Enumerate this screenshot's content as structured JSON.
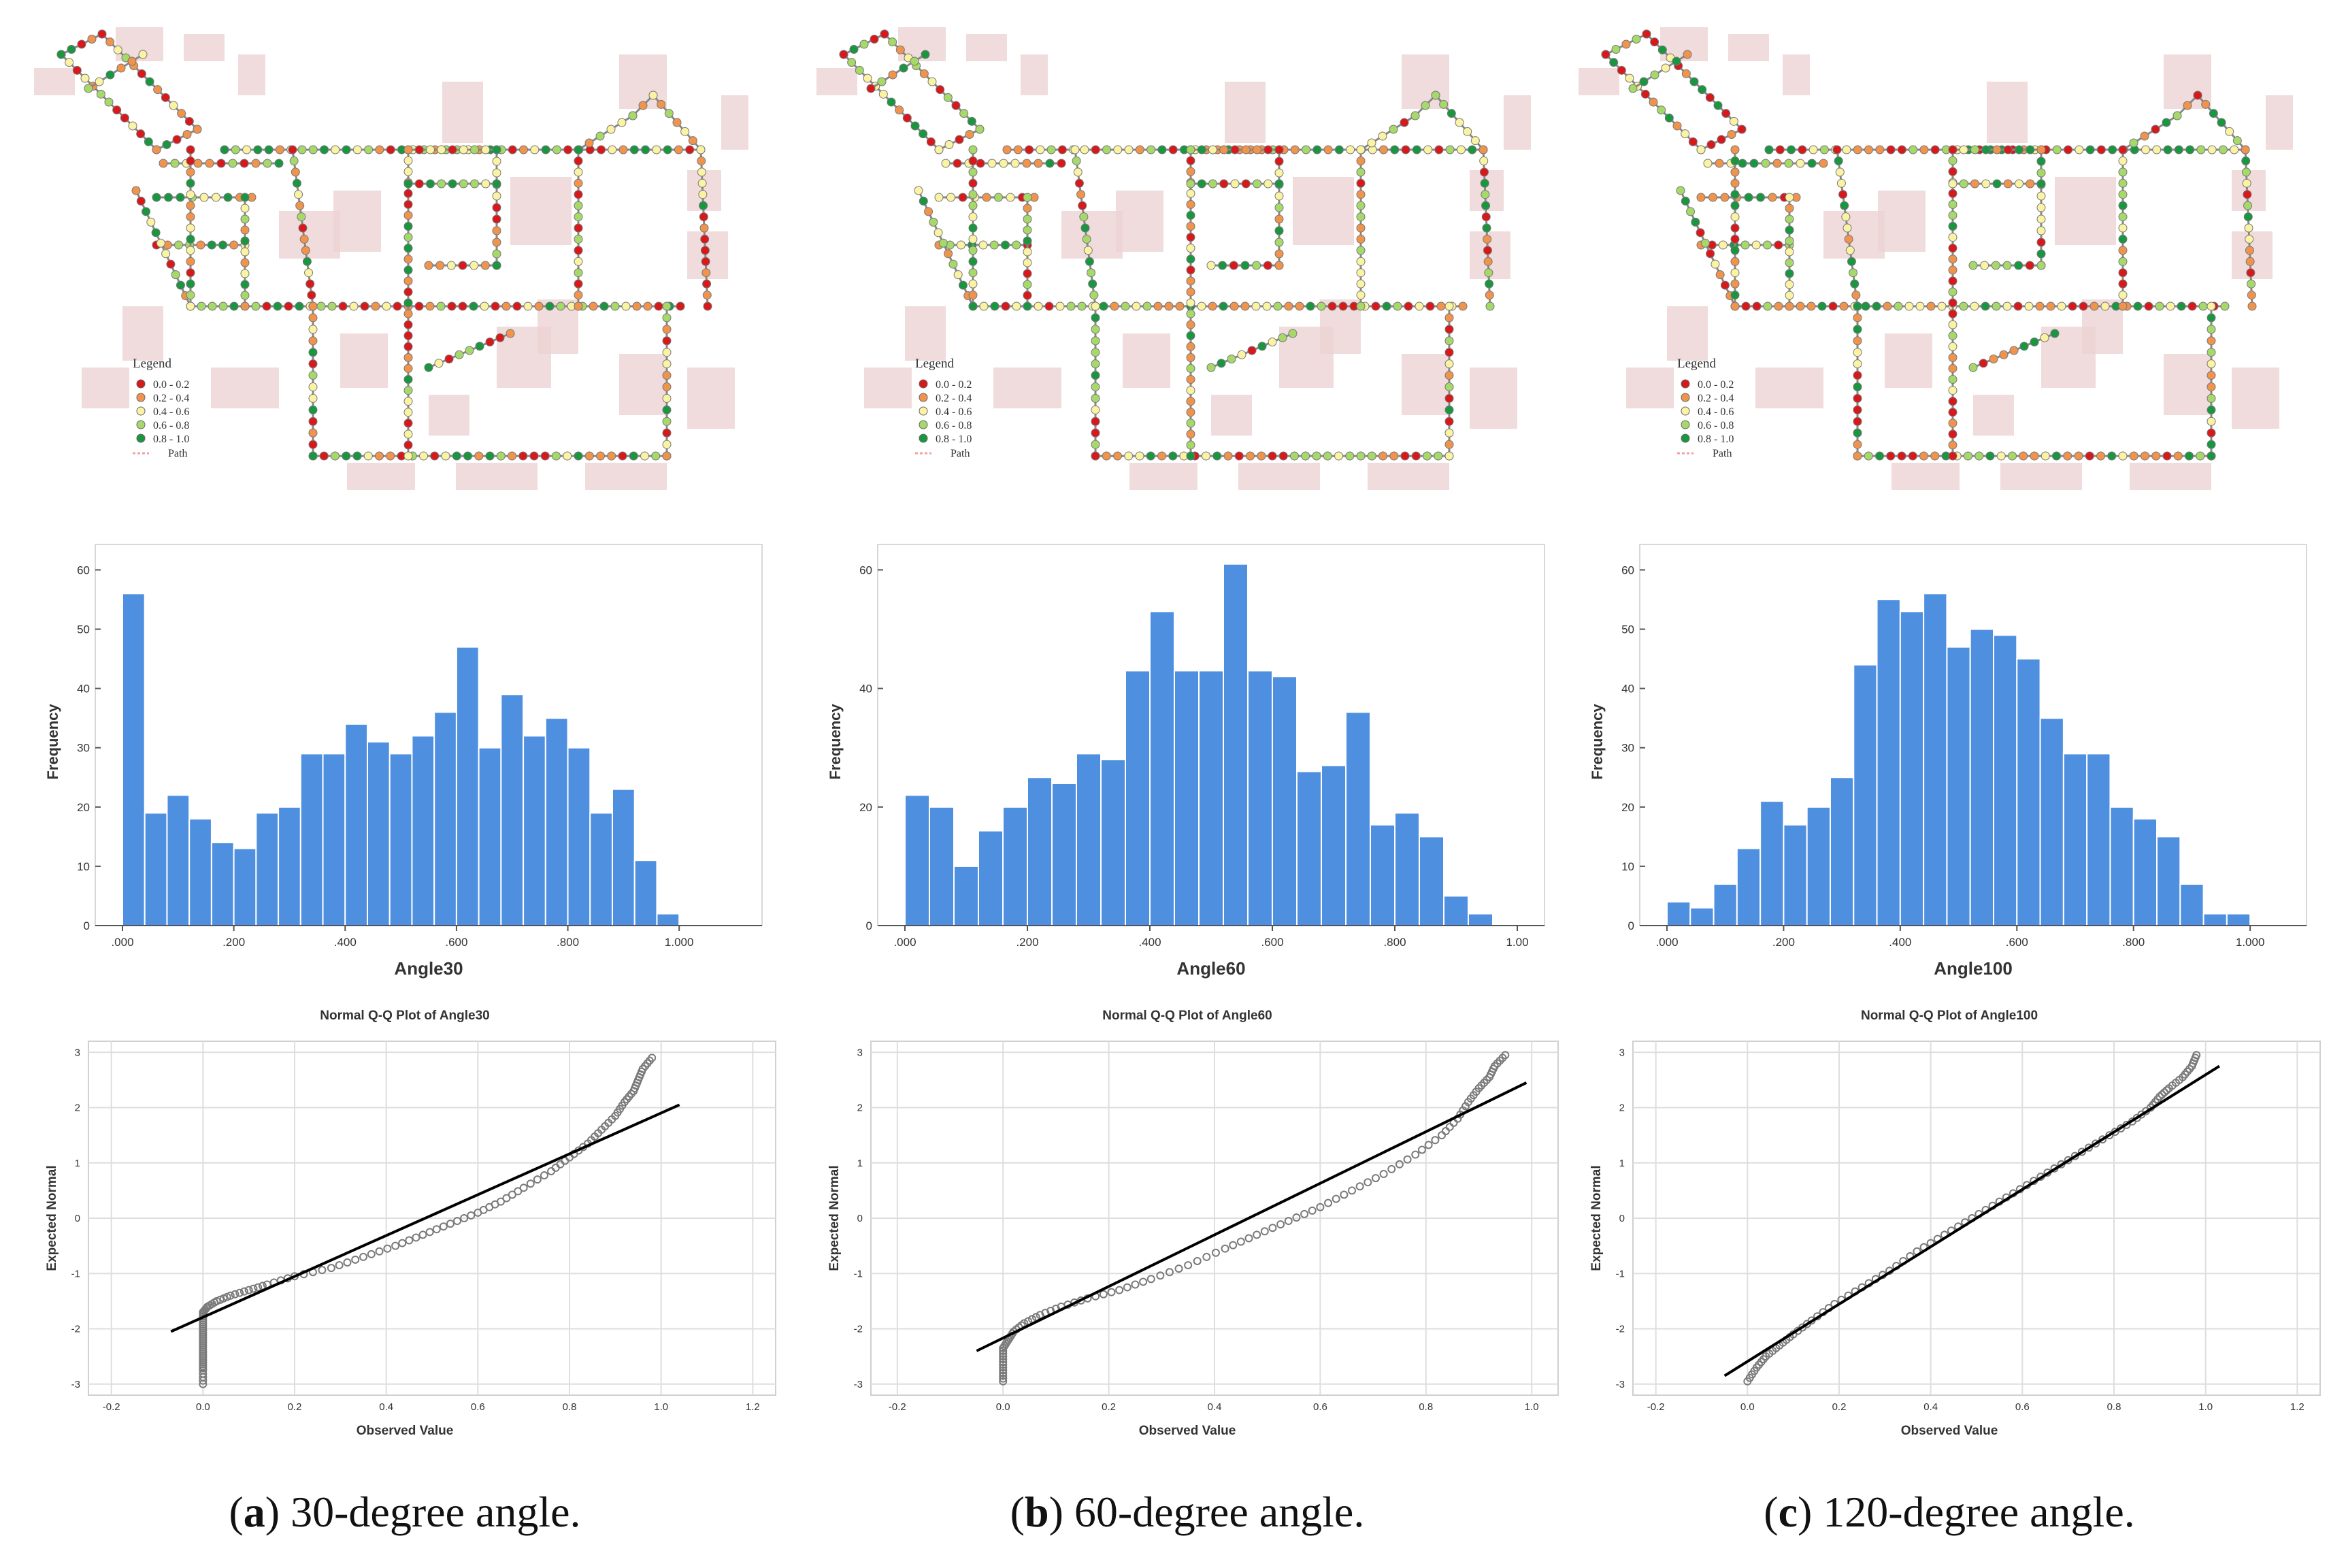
{
  "legend": {
    "title": "Legend",
    "classes": [
      {
        "label": "0.0 - 0.2",
        "color": "#d7191c"
      },
      {
        "label": "0.2 - 0.4",
        "color": "#f0944d"
      },
      {
        "label": "0.4 - 0.6",
        "color": "#fbf3a4"
      },
      {
        "label": "0.6 - 0.8",
        "color": "#a6d96a"
      },
      {
        "label": "0.8 - 1.0",
        "color": "#1a9641"
      }
    ],
    "path_label": "Path",
    "path_color": "#f4a0a0"
  },
  "colors": {
    "bar": "#4f8fe0",
    "qq_points": "#7a7a7a",
    "qq_line": "#000000",
    "building": "#ecd3d3",
    "grid": "#dedede"
  },
  "panels": [
    {
      "id": "a",
      "caption_letter": "a",
      "caption_rest": ") 30-degree angle.",
      "histogram": {
        "type": "bar",
        "xlabel": "Angle30",
        "ylabel": "Frequency",
        "xlim": [
          0,
          1.1
        ],
        "ylim": [
          0,
          62
        ],
        "yticks": [
          0,
          10,
          20,
          30,
          40,
          50,
          60
        ],
        "xticks": [
          ".000",
          ".200",
          ".400",
          ".600",
          ".800",
          "1.000"
        ],
        "xtick_values": [
          0,
          0.2,
          0.4,
          0.6,
          0.8,
          1.0
        ],
        "bin_start": 0.0,
        "bin_width": 0.04,
        "values": [
          56,
          19,
          22,
          18,
          14,
          13,
          19,
          20,
          29,
          29,
          34,
          31,
          29,
          32,
          36,
          47,
          30,
          39,
          32,
          35,
          30,
          19,
          23,
          11,
          2
        ]
      },
      "qq": {
        "type": "scatter",
        "title": "Normal Q-Q Plot of Angle30",
        "xlabel": "Observed Value",
        "ylabel": "Expected Normal",
        "xlim": [
          -0.25,
          1.25
        ],
        "ylim": [
          -3.2,
          3.2
        ],
        "xticks": [
          "-0.2",
          "0.0",
          "0.2",
          "0.4",
          "0.6",
          "0.8",
          "1.0",
          "1.2"
        ],
        "xtick_values": [
          -0.2,
          0,
          0.2,
          0.4,
          0.6,
          0.8,
          1.0,
          1.2
        ],
        "yticks": [
          "-3",
          "-2",
          "-1",
          "0",
          "1",
          "2",
          "3"
        ],
        "ytick_values": [
          -3,
          -2,
          -1,
          0,
          1,
          2,
          3
        ],
        "line": [
          [
            -0.07,
            -2.05
          ],
          [
            1.04,
            2.05
          ]
        ],
        "points": [
          [
            0.0,
            -3.0
          ],
          [
            0.0,
            -2.75
          ],
          [
            0.0,
            -2.6
          ],
          [
            0.0,
            -2.45
          ],
          [
            0.0,
            -2.3
          ],
          [
            0.0,
            -2.15
          ],
          [
            0.0,
            -2.0
          ],
          [
            0.0,
            -1.85
          ],
          [
            0.0,
            -1.7
          ],
          [
            0.01,
            -1.6
          ],
          [
            0.03,
            -1.5
          ],
          [
            0.06,
            -1.4
          ],
          [
            0.1,
            -1.3
          ],
          [
            0.14,
            -1.2
          ],
          [
            0.2,
            -1.05
          ],
          [
            0.28,
            -0.9
          ],
          [
            0.35,
            -0.7
          ],
          [
            0.42,
            -0.5
          ],
          [
            0.48,
            -0.3
          ],
          [
            0.54,
            -0.1
          ],
          [
            0.6,
            0.1
          ],
          [
            0.65,
            0.3
          ],
          [
            0.7,
            0.55
          ],
          [
            0.76,
            0.85
          ],
          [
            0.8,
            1.1
          ],
          [
            0.84,
            1.35
          ],
          [
            0.87,
            1.6
          ],
          [
            0.9,
            1.85
          ],
          [
            0.92,
            2.1
          ],
          [
            0.94,
            2.3
          ],
          [
            0.95,
            2.5
          ],
          [
            0.96,
            2.7
          ],
          [
            0.98,
            2.9
          ]
        ]
      }
    },
    {
      "id": "b",
      "caption_letter": "b",
      "caption_rest": ") 60-degree angle.",
      "histogram": {
        "type": "bar",
        "xlabel": "Angle60",
        "ylabel": "Frequency",
        "xlim": [
          0,
          1.0
        ],
        "ylim": [
          0,
          62
        ],
        "yticks": [
          0,
          20,
          40,
          60
        ],
        "xticks": [
          ".000",
          ".200",
          ".400",
          ".600",
          ".800",
          "1.00"
        ],
        "xtick_values": [
          0,
          0.2,
          0.4,
          0.6,
          0.8,
          1.0
        ],
        "bin_start": 0.0,
        "bin_width": 0.04,
        "values": [
          22,
          20,
          10,
          16,
          20,
          25,
          24,
          29,
          28,
          43,
          53,
          43,
          43,
          61,
          43,
          42,
          26,
          27,
          36,
          17,
          19,
          15,
          5,
          2
        ]
      },
      "qq": {
        "type": "scatter",
        "title": "Normal Q-Q Plot of Angle60",
        "xlabel": "Observed Value",
        "ylabel": "Expected Normal",
        "xlim": [
          -0.25,
          1.05
        ],
        "ylim": [
          -3.2,
          3.2
        ],
        "xticks": [
          "-0.2",
          "0.0",
          "0.2",
          "0.4",
          "0.6",
          "0.8",
          "1.0"
        ],
        "xtick_values": [
          -0.2,
          0,
          0.2,
          0.4,
          0.6,
          0.8,
          1.0
        ],
        "yticks": [
          "-3",
          "-2",
          "-1",
          "0",
          "1",
          "2",
          "3"
        ],
        "ytick_values": [
          -3,
          -2,
          -1,
          0,
          1,
          2,
          3
        ],
        "line": [
          [
            -0.05,
            -2.4
          ],
          [
            0.99,
            2.45
          ]
        ],
        "points": [
          [
            0.0,
            -2.95
          ],
          [
            0.0,
            -2.75
          ],
          [
            0.0,
            -2.55
          ],
          [
            0.0,
            -2.35
          ],
          [
            0.01,
            -2.2
          ],
          [
            0.02,
            -2.05
          ],
          [
            0.04,
            -1.9
          ],
          [
            0.07,
            -1.75
          ],
          [
            0.11,
            -1.6
          ],
          [
            0.16,
            -1.45
          ],
          [
            0.22,
            -1.3
          ],
          [
            0.28,
            -1.1
          ],
          [
            0.35,
            -0.85
          ],
          [
            0.42,
            -0.55
          ],
          [
            0.48,
            -0.3
          ],
          [
            0.54,
            -0.05
          ],
          [
            0.6,
            0.2
          ],
          [
            0.66,
            0.5
          ],
          [
            0.72,
            0.8
          ],
          [
            0.78,
            1.15
          ],
          [
            0.83,
            1.5
          ],
          [
            0.86,
            1.8
          ],
          [
            0.88,
            2.1
          ],
          [
            0.9,
            2.35
          ],
          [
            0.92,
            2.55
          ],
          [
            0.93,
            2.75
          ],
          [
            0.95,
            2.95
          ]
        ]
      }
    },
    {
      "id": "c",
      "caption_letter": "c",
      "caption_rest": ") 120-degree angle.",
      "histogram": {
        "type": "bar",
        "xlabel": "Angle100",
        "ylabel": "Frequency",
        "xlim": [
          0,
          1.05
        ],
        "ylim": [
          0,
          62
        ],
        "yticks": [
          0,
          10,
          20,
          30,
          40,
          50,
          60
        ],
        "xticks": [
          ".000",
          ".200",
          ".400",
          ".600",
          ".800",
          "1.000"
        ],
        "xtick_values": [
          0,
          0.2,
          0.4,
          0.6,
          0.8,
          1.0
        ],
        "bin_start": 0.0,
        "bin_width": 0.04,
        "values": [
          4,
          3,
          7,
          13,
          21,
          17,
          20,
          25,
          44,
          55,
          53,
          56,
          47,
          50,
          49,
          45,
          35,
          29,
          29,
          20,
          18,
          15,
          7,
          2,
          2
        ]
      },
      "qq": {
        "type": "scatter",
        "title": "Normal Q-Q Plot of Angle100",
        "xlabel": "Observed Value",
        "ylabel": "Expected Normal",
        "xlim": [
          -0.25,
          1.25
        ],
        "ylim": [
          -3.2,
          3.2
        ],
        "xticks": [
          "-0.2",
          "0.0",
          "0.2",
          "0.4",
          "0.6",
          "0.8",
          "1.0",
          "1.2"
        ],
        "xtick_values": [
          -0.2,
          0,
          0.2,
          0.4,
          0.6,
          0.8,
          1.0,
          1.2
        ],
        "yticks": [
          "-3",
          "-2",
          "-1",
          "0",
          "1",
          "2",
          "3"
        ],
        "ytick_values": [
          -3,
          -2,
          -1,
          0,
          1,
          2,
          3
        ],
        "line": [
          [
            -0.05,
            -2.85
          ],
          [
            1.03,
            2.75
          ]
        ],
        "points": [
          [
            0.0,
            -2.95
          ],
          [
            0.02,
            -2.7
          ],
          [
            0.04,
            -2.5
          ],
          [
            0.07,
            -2.3
          ],
          [
            0.1,
            -2.1
          ],
          [
            0.14,
            -1.85
          ],
          [
            0.19,
            -1.55
          ],
          [
            0.25,
            -1.25
          ],
          [
            0.31,
            -0.95
          ],
          [
            0.37,
            -0.6
          ],
          [
            0.43,
            -0.3
          ],
          [
            0.49,
            0.0
          ],
          [
            0.55,
            0.3
          ],
          [
            0.61,
            0.6
          ],
          [
            0.67,
            0.9
          ],
          [
            0.73,
            1.2
          ],
          [
            0.79,
            1.5
          ],
          [
            0.84,
            1.75
          ],
          [
            0.88,
            2.0
          ],
          [
            0.9,
            2.2
          ],
          [
            0.92,
            2.35
          ],
          [
            0.95,
            2.55
          ],
          [
            0.97,
            2.75
          ],
          [
            0.98,
            2.95
          ]
        ]
      }
    }
  ]
}
